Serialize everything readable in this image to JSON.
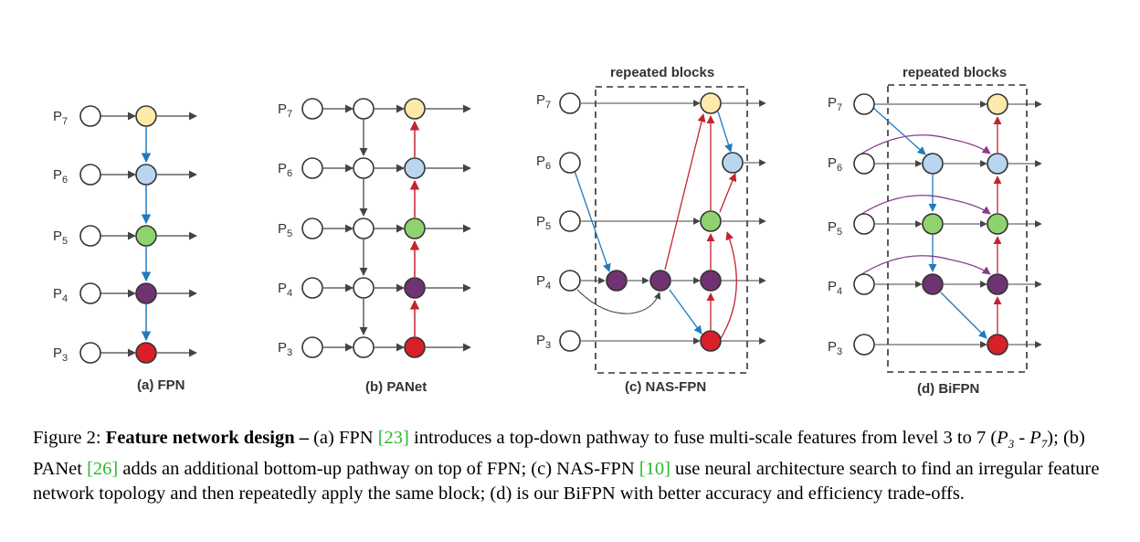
{
  "figure": {
    "level_labels": [
      "P7",
      "P6",
      "P5",
      "P4",
      "P3"
    ],
    "repeated_blocks_label": "repeated blocks",
    "panels": [
      {
        "id": "fpn",
        "caption": "(a) FPN"
      },
      {
        "id": "panet",
        "caption": "(b) PANet"
      },
      {
        "id": "nasfpn",
        "caption": "(c) NAS-FPN"
      },
      {
        "id": "bifpn",
        "caption": "(d) BiFPN"
      }
    ],
    "colors": {
      "p7": "#fde9a9",
      "p6": "#b8d6ef",
      "p5": "#8fd36f",
      "p4": "#6f3272",
      "p3": "#d81f2a",
      "blue_arrow": "#1f7ac0",
      "red_arrow": "#c4232e",
      "purple_arrow": "#8a3c8e",
      "dark_arrow": "#444444"
    }
  },
  "caption": {
    "figure_label": "Figure 2:",
    "bold_title": "Feature network design –",
    "part1": " (a) FPN ",
    "cite1": "[23]",
    "part2": " introduces a top-down pathway to fuse multi-scale features from level 3 to 7 (",
    "p3_italic": "P",
    "p3_sub": "3",
    "dash": " - ",
    "p7_italic": "P",
    "p7_sub": "7",
    "part3": "); (b) PANet ",
    "cite2": "[26]",
    "part4": " adds an additional bottom-up pathway on top of FPN; (c) NAS-FPN ",
    "cite3": "[10]",
    "part5": " use neural architecture search to find an irregular feature network topology and then repeatedly apply the same block; (d) is our BiFPN with better accuracy and efficiency trade-offs."
  }
}
